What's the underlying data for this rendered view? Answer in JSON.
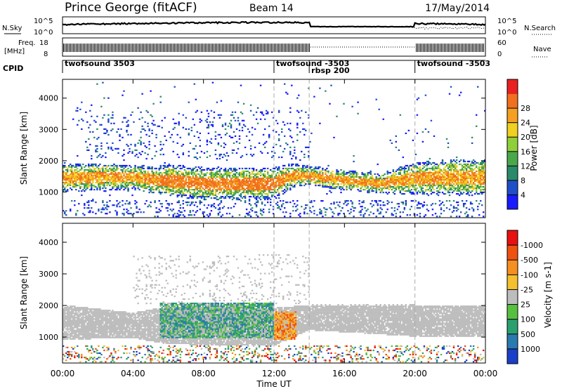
{
  "header": {
    "station": "Prince George (fitACF)",
    "beam": "Beam 14",
    "date": "17/May/2014"
  },
  "noise_panel": {
    "left_label": "N.Sky",
    "right_label": "N.Search",
    "left_ticks": [
      "10^5",
      "10^0"
    ],
    "right_ticks": [
      "10^5",
      "10^0"
    ]
  },
  "freq_panel": {
    "left_label_line1": "Freq.",
    "left_label_line2": "[MHz]",
    "right_label": "Nave",
    "left_ticks": [
      "18",
      "8"
    ],
    "right_ticks": [
      "60",
      "0"
    ]
  },
  "cpid": {
    "label": "CPID",
    "segments": [
      {
        "name": "twofsound 3503",
        "start_hour": 0,
        "end_hour": 12
      },
      {
        "name": "twofsound -3503",
        "start_hour": 12,
        "end_hour": 14
      },
      {
        "name": "rbsp 200",
        "start_hour": 14,
        "end_hour": 20
      },
      {
        "name": "twofsound -3503",
        "start_hour": 20,
        "end_hour": 24
      }
    ]
  },
  "power_colorbar": {
    "label": "Power [dB]",
    "ticks": [
      "4",
      "8",
      "12",
      "16",
      "20",
      "24",
      "28"
    ],
    "colors": [
      "#1a1aff",
      "#1e4fc8",
      "#2a8a6a",
      "#4aa84a",
      "#8fd03a",
      "#f0d020",
      "#f5a020",
      "#f07020",
      "#e82020"
    ]
  },
  "velocity_colorbar": {
    "label": "Velocity [m s-1]",
    "ticks": [
      "1000",
      "500",
      "100",
      "25",
      "-25",
      "-100",
      "-500",
      "-1000"
    ],
    "colors": [
      "#1a3fc8",
      "#2a7ab0",
      "#2aa070",
      "#58c040",
      "#bdbdbd",
      "#f5c030",
      "#f59020",
      "#f05010",
      "#e81010"
    ]
  },
  "chart_data": [
    {
      "type": "heatmap",
      "title": "Power",
      "xlabel": "",
      "ylabel": "Slant Range [km]",
      "xlim": [
        0,
        24
      ],
      "ylim": [
        180,
        4600
      ],
      "yticks": [
        1000,
        2000,
        3000,
        4000
      ],
      "grid": false,
      "quantity": "Power [dB]",
      "echo_band": {
        "hours": [
          0,
          2,
          4,
          5.5,
          6,
          8,
          10,
          12,
          13,
          14,
          16,
          18,
          20,
          22,
          24
        ],
        "center_km": [
          1450,
          1450,
          1450,
          1350,
          1350,
          1250,
          1250,
          1250,
          1500,
          1500,
          1350,
          1250,
          1400,
          1450,
          1450
        ],
        "halfwidth_km": [
          350,
          350,
          300,
          350,
          400,
          400,
          400,
          400,
          300,
          250,
          250,
          250,
          400,
          450,
          450
        ]
      }
    },
    {
      "type": "heatmap",
      "title": "Velocity",
      "xlabel": "Time UT",
      "ylabel": "Slant Range [km]",
      "xlim": [
        0,
        24
      ],
      "ylim": [
        180,
        4600
      ],
      "yticks": [
        1000,
        2000,
        3000,
        4000
      ],
      "xticks": [
        "00:00",
        "04:00",
        "08:00",
        "12:00",
        "16:00",
        "20:00",
        "00:00"
      ],
      "grid": false,
      "quantity": "Velocity [m s-1]",
      "ground_scatter_band": {
        "hours": [
          0,
          4,
          6,
          12,
          14,
          20,
          24
        ],
        "center_km": [
          1450,
          1350,
          1350,
          1300,
          1600,
          1500,
          1500
        ],
        "halfwidth_km": [
          550,
          400,
          600,
          600,
          400,
          500,
          500
        ]
      }
    }
  ]
}
